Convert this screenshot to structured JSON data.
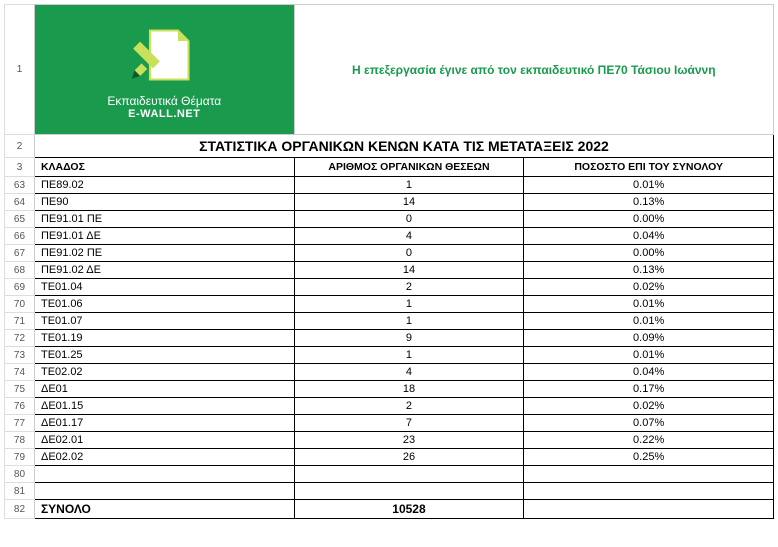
{
  "header": {
    "logo_line1": "Εκπαιδευτικά Θέματα",
    "logo_line2": "E-WALL.NET",
    "credit": "Η επεξεργασία έγινε από τον εκπαιδευτικό ΠΕ70 Τάσιου Ιωάννη",
    "rownum": "1"
  },
  "title": {
    "text": "ΣΤΑΤΙΣΤΙΚΑ ΟΡΓΑΝΙΚΩΝ ΚΕΝΩΝ ΚΑΤΑ ΤΙΣ ΜΕΤΑΤΑΞΕΙΣ 2022",
    "rownum": "2"
  },
  "columns": {
    "a": "ΚΛΑΔΟΣ",
    "b": "ΑΡΙΘΜΟΣ ΟΡΓΑΝΙΚΩΝ ΘΕΣΕΩΝ",
    "c": "ΠΟΣΟΣΤΟ ΕΠΙ ΤΟΥ ΣΥΝΟΛΟΥ",
    "rownum": "3"
  },
  "rows": [
    {
      "n": "63",
      "a": "ΠΕ89.02",
      "b": "1",
      "c": "0.01%"
    },
    {
      "n": "64",
      "a": "ΠΕ90",
      "b": "14",
      "c": "0.13%"
    },
    {
      "n": "65",
      "a": "ΠΕ91.01 ΠΕ",
      "b": "0",
      "c": "0.00%"
    },
    {
      "n": "66",
      "a": "ΠΕ91.01 ΔΕ",
      "b": "4",
      "c": "0.04%"
    },
    {
      "n": "67",
      "a": "ΠΕ91.02 ΠΕ",
      "b": "0",
      "c": "0.00%"
    },
    {
      "n": "68",
      "a": "ΠΕ91.02 ΔΕ",
      "b": "14",
      "c": "0.13%"
    },
    {
      "n": "69",
      "a": "ΤΕ01.04",
      "b": "2",
      "c": "0.02%"
    },
    {
      "n": "70",
      "a": "ΤΕ01.06",
      "b": "1",
      "c": "0.01%"
    },
    {
      "n": "71",
      "a": "ΤΕ01.07",
      "b": "1",
      "c": "0.01%"
    },
    {
      "n": "72",
      "a": "ΤΕ01.19",
      "b": "9",
      "c": "0.09%"
    },
    {
      "n": "73",
      "a": "ΤΕ01.25",
      "b": "1",
      "c": "0.01%"
    },
    {
      "n": "74",
      "a": "ΤΕ02.02",
      "b": "4",
      "c": "0.04%"
    },
    {
      "n": "75",
      "a": "ΔΕ01",
      "b": "18",
      "c": "0.17%"
    },
    {
      "n": "76",
      "a": "ΔΕ01.15",
      "b": "2",
      "c": "0.02%"
    },
    {
      "n": "77",
      "a": "ΔΕ01.17",
      "b": "7",
      "c": "0.07%"
    },
    {
      "n": "78",
      "a": "ΔΕ02.01",
      "b": "23",
      "c": "0.22%"
    },
    {
      "n": "79",
      "a": "ΔΕ02.02",
      "b": "26",
      "c": "0.25%"
    }
  ],
  "empty_rows": [
    "80",
    "81"
  ],
  "total": {
    "rownum": "82",
    "label": "ΣΥΝΟΛΟ",
    "value": "10528",
    "pct": ""
  },
  "colors": {
    "logo_bg": "#1a9a4c",
    "credit_text": "#1a9a4c",
    "grid": "#000000"
  }
}
